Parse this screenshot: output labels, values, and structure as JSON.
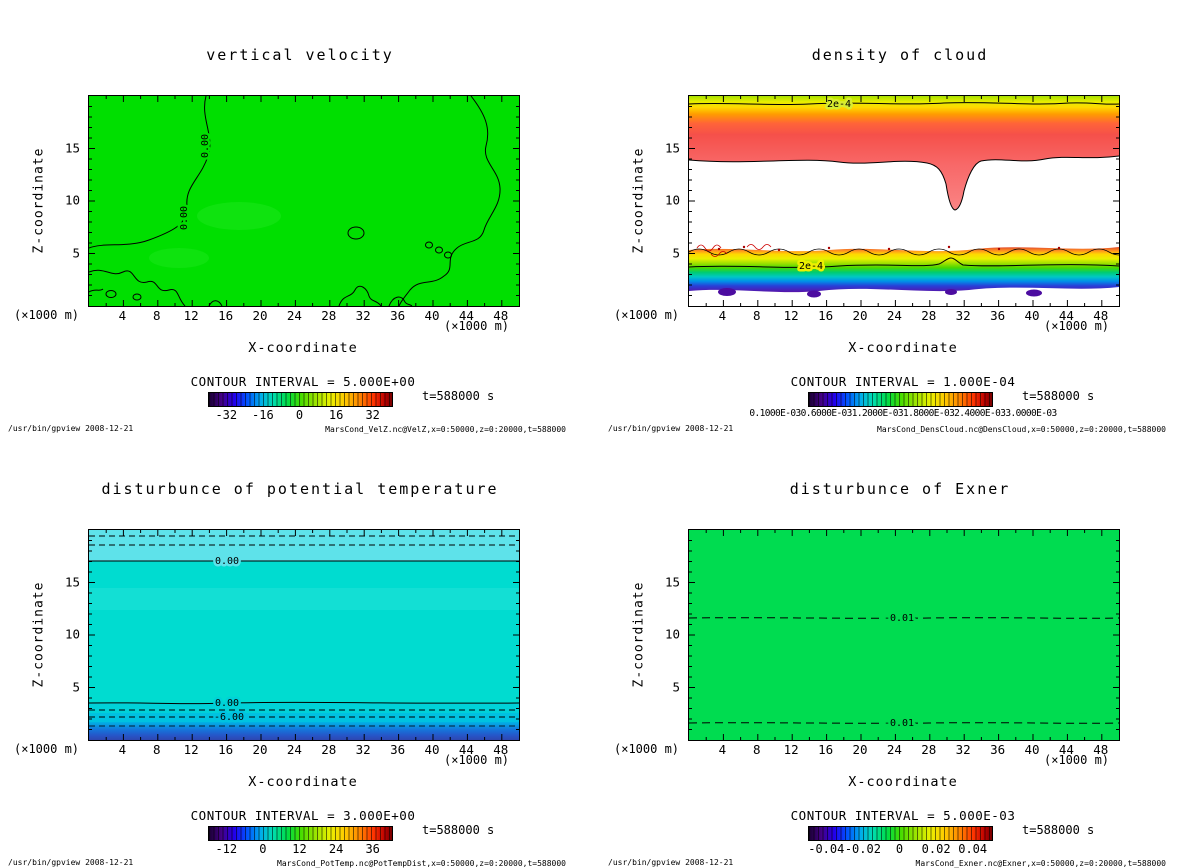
{
  "shared": {
    "time_label": "t=588000 s",
    "footer_left": "/usr/bin/gpview  2008-12-21",
    "axis_unit": "(×1000 m)",
    "xlabel": "X-coordinate",
    "ylabel": "Z-coordinate",
    "x_ticks": [
      "4",
      "8",
      "12",
      "16",
      "20",
      "24",
      "28",
      "32",
      "36",
      "40",
      "44",
      "48"
    ],
    "y_ticks": [
      "5",
      "10",
      "15"
    ]
  },
  "panels": [
    {
      "title": "vertical velocity",
      "contour_interval_label": "CONTOUR INTERVAL =  5.000E+00",
      "colorbar_ticks": [
        "-32",
        "-16",
        "0",
        "16",
        "32"
      ],
      "contour_labels": [
        "0.00",
        "0.00"
      ],
      "footer_right": "MarsCond_VelZ.nc@VelZ,x=0:50000,z=0:20000,t=588000"
    },
    {
      "title": "density of cloud",
      "contour_interval_label": "CONTOUR INTERVAL =  1.000E-04",
      "colorbar_label": "0.1000E-030.6000E-031.2000E-031.8000E-032.4000E-033.0000E-03",
      "contour_labels": [
        "2e-4",
        "2e-4"
      ],
      "footer_right": "MarsCond_DensCloud.nc@DensCloud,x=0:50000,z=0:20000,t=588000"
    },
    {
      "title": "disturbunce of potential temperature",
      "contour_interval_label": "CONTOUR INTERVAL =  3.000E+00",
      "colorbar_ticks": [
        "-12",
        "0",
        "12",
        "24",
        "36"
      ],
      "contour_labels": [
        "0.00",
        "0.00",
        "-6.00"
      ],
      "footer_right": "MarsCond_PotTemp.nc@PotTempDist,x=0:50000,z=0:20000,t=588000"
    },
    {
      "title": "disturbunce of Exner",
      "contour_interval_label": "CONTOUR INTERVAL =  5.000E-03",
      "colorbar_ticks": [
        "-0.04",
        "-0.02",
        "0",
        "0.02",
        "0.04"
      ],
      "contour_labels": [
        "-0.01",
        "-0.01"
      ],
      "footer_right": "MarsCond_Exner.nc@Exner,x=0:50000,z=0:20000,t=588000"
    }
  ],
  "chart_data": [
    {
      "type": "heatmap",
      "title": "vertical velocity",
      "xlabel": "X-coordinate (×1000 m)",
      "ylabel": "Z-coordinate (×1000 m)",
      "x_range": [
        0,
        50
      ],
      "z_range": [
        0,
        20
      ],
      "x_ticks": [
        4,
        8,
        12,
        16,
        20,
        24,
        28,
        32,
        36,
        40,
        44,
        48
      ],
      "z_ticks": [
        5,
        10,
        15
      ],
      "time_s": 588000,
      "contour_interval": 5.0,
      "colorbar_ticks": [
        -32,
        -16,
        0,
        16,
        32
      ],
      "palette": "rainbow purple-blue-green-yellow-red",
      "dominant_color": "#00df00",
      "labeled_contours": [
        {
          "value": 0.0,
          "location": "meandering line near x≈12 from top to left edge"
        },
        {
          "value": 0.0,
          "location": "line near right edge x≈45"
        }
      ],
      "field_summary": "nearly uniform vertical velocity ≈0 m/s (single green band); wandering 0.00 contours and small closed 0-contours along the bottom boundary"
    },
    {
      "type": "heatmap",
      "title": "density of cloud",
      "xlabel": "X-coordinate (×1000 m)",
      "ylabel": "Z-coordinate (×1000 m)",
      "x_range": [
        0,
        50
      ],
      "z_range": [
        0,
        20
      ],
      "x_ticks": [
        4,
        8,
        12,
        16,
        20,
        24,
        28,
        32,
        36,
        40,
        44,
        48
      ],
      "z_ticks": [
        5,
        10,
        15
      ],
      "time_s": 588000,
      "contour_interval": 0.0001,
      "colorbar_tick_text": "overlapping unreadable exponent labels ending in e-03",
      "palette": "rainbow purple-blue-green-yellow-red",
      "labeled_contours": [
        {
          "value": 0.0002,
          "z_approx": 19.5
        },
        {
          "value": 0.0002,
          "z_approx": 3.2
        }
      ],
      "layers": [
        {
          "z_range": [
            13.5,
            20
          ],
          "description": "upper cloud deck, yellow-green at top ramping to red at base; narrow notch dips to z≈9 near x≈32"
        },
        {
          "z_range": [
            5.2,
            13.5
          ],
          "description": "clear air (white, below contour threshold)"
        },
        {
          "z_range": [
            1.4,
            5.2
          ],
          "description": "thin stratified layer: red/orange top, yellow, green, cyan, blue, purple at base with speckled contours"
        }
      ]
    },
    {
      "type": "heatmap",
      "title": "disturbunce of potential temperature",
      "xlabel": "X-coordinate (×1000 m)",
      "ylabel": "Z-coordinate (×1000 m)",
      "x_range": [
        0,
        50
      ],
      "z_range": [
        0,
        20
      ],
      "x_ticks": [
        4,
        8,
        12,
        16,
        20,
        24,
        28,
        32,
        36,
        40,
        44,
        48
      ],
      "z_ticks": [
        5,
        10,
        15
      ],
      "time_s": 588000,
      "contour_interval": 3.0,
      "colorbar_ticks": [
        -12,
        0,
        12,
        24,
        36
      ],
      "dominant_color": "#00dcd0",
      "labeled_contours": [
        {
          "value": 0.0,
          "z_approx": 17.5
        },
        {
          "value": 0.0,
          "z_approx": 3.5
        },
        {
          "value": -6.0,
          "z_approx": 2.2
        }
      ],
      "field_summary": "mostly uniform cyan (≈0 to −3); lighter band with dashed contours above z≈17.5; below z≈3.5 values fall through −6 into dark blue near the surface"
    },
    {
      "type": "heatmap",
      "title": "disturbunce of Exner",
      "xlabel": "X-coordinate (×1000 m)",
      "ylabel": "Z-coordinate (×1000 m)",
      "x_range": [
        0,
        50
      ],
      "z_range": [
        0,
        20
      ],
      "x_ticks": [
        4,
        8,
        12,
        16,
        20,
        24,
        28,
        32,
        36,
        40,
        44,
        48
      ],
      "z_ticks": [
        5,
        10,
        15
      ],
      "time_s": 588000,
      "contour_interval": 0.005,
      "colorbar_ticks": [
        -0.04,
        -0.02,
        0,
        0.02,
        0.04
      ],
      "dominant_color": "#00dc50",
      "labeled_contours": [
        {
          "value": -0.01,
          "z_approx": 8.5
        },
        {
          "value": -0.01,
          "z_approx": 1.6
        }
      ],
      "field_summary": "uniform green field with two dashed −0.01 contour lines at z≈8.5 and z≈1.6"
    }
  ]
}
